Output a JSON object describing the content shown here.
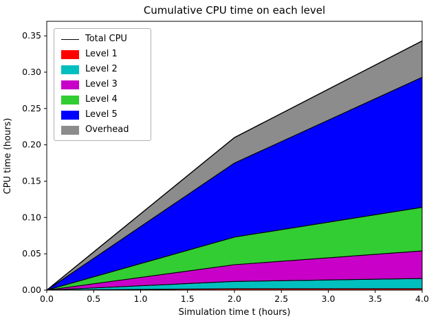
{
  "chart_data": {
    "type": "area",
    "title": "Cumulative CPU time on each level",
    "xlabel": "Simulation time t (hours)",
    "ylabel": "CPU time (hours)",
    "x": [
      0.0,
      2.0,
      4.0
    ],
    "series": [
      {
        "name": "Level 1",
        "color": "#ff0000",
        "values": [
          0,
          0.002,
          0.002
        ]
      },
      {
        "name": "Level 2",
        "color": "#00bfbf",
        "values": [
          0,
          0.01,
          0.014
        ]
      },
      {
        "name": "Level 3",
        "color": "#c800c8",
        "values": [
          0,
          0.023,
          0.038
        ]
      },
      {
        "name": "Level 4",
        "color": "#32cd32",
        "values": [
          0,
          0.038,
          0.06
        ]
      },
      {
        "name": "Level 5",
        "color": "#0000ff",
        "values": [
          0,
          0.102,
          0.179
        ]
      },
      {
        "name": "Overhead",
        "color": "#8c8c8c",
        "values": [
          0,
          0.035,
          0.05
        ]
      }
    ],
    "cumulative_totals": [
      0,
      0.21,
      0.343
    ],
    "total_line": {
      "name": "Total CPU",
      "color": "#000000"
    },
    "xlim": [
      0.0,
      4.0
    ],
    "ylim": [
      0.0,
      0.37
    ],
    "xticks": [
      0.0,
      0.5,
      1.0,
      1.5,
      2.0,
      2.5,
      3.0,
      3.5,
      4.0
    ],
    "yticks": [
      0.0,
      0.05,
      0.1,
      0.15,
      0.2,
      0.25,
      0.3,
      0.35
    ],
    "legend_entries": [
      "Total CPU",
      "Level 1",
      "Level 2",
      "Level 3",
      "Level 4",
      "Level 5",
      "Overhead"
    ],
    "legend_position": "upper left",
    "grid": false
  }
}
